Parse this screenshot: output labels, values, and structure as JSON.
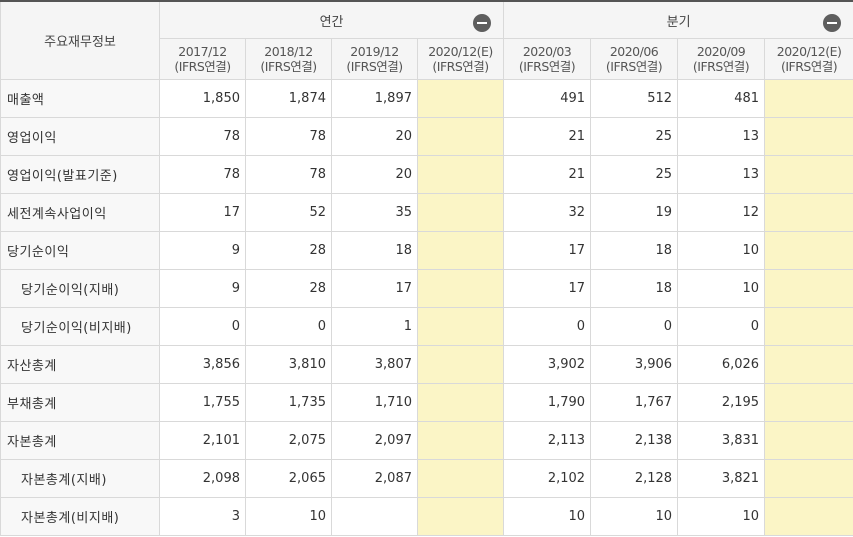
{
  "header": {
    "corner": "주요재무정보",
    "annual": {
      "label": "연간",
      "periods": [
        {
          "year": "2017/12",
          "basis": "(IFRS연결)"
        },
        {
          "year": "2018/12",
          "basis": "(IFRS연결)"
        },
        {
          "year": "2019/12",
          "basis": "(IFRS연결)"
        },
        {
          "year": "2020/12(E)",
          "basis": "(IFRS연결)"
        }
      ]
    },
    "quarterly": {
      "label": "분기",
      "periods": [
        {
          "year": "2020/03",
          "basis": "(IFRS연결)"
        },
        {
          "year": "2020/06",
          "basis": "(IFRS연결)"
        },
        {
          "year": "2020/09",
          "basis": "(IFRS연결)"
        },
        {
          "year": "2020/12(E)",
          "basis": "(IFRS연결)"
        }
      ]
    }
  },
  "colors": {
    "estimate_bg": "#fbf5c6",
    "header_bg": "#f5f5f5",
    "toggle": "#5e5e5e"
  },
  "rows": [
    {
      "label": "매출액",
      "indent": false,
      "annual": [
        "1,850",
        "1,874",
        "1,897",
        ""
      ],
      "quarterly": [
        "491",
        "512",
        "481",
        ""
      ]
    },
    {
      "label": "영업이익",
      "indent": false,
      "annual": [
        "78",
        "78",
        "20",
        ""
      ],
      "quarterly": [
        "21",
        "25",
        "13",
        ""
      ]
    },
    {
      "label": "영업이익(발표기준)",
      "indent": false,
      "annual": [
        "78",
        "78",
        "20",
        ""
      ],
      "quarterly": [
        "21",
        "25",
        "13",
        ""
      ]
    },
    {
      "label": "세전계속사업이익",
      "indent": false,
      "annual": [
        "17",
        "52",
        "35",
        ""
      ],
      "quarterly": [
        "32",
        "19",
        "12",
        ""
      ]
    },
    {
      "label": "당기순이익",
      "indent": false,
      "annual": [
        "9",
        "28",
        "18",
        ""
      ],
      "quarterly": [
        "17",
        "18",
        "10",
        ""
      ]
    },
    {
      "label": "당기순이익(지배)",
      "indent": true,
      "annual": [
        "9",
        "28",
        "17",
        ""
      ],
      "quarterly": [
        "17",
        "18",
        "10",
        ""
      ]
    },
    {
      "label": "당기순이익(비지배)",
      "indent": true,
      "annual": [
        "0",
        "0",
        "1",
        ""
      ],
      "quarterly": [
        "0",
        "0",
        "0",
        ""
      ]
    },
    {
      "label": "자산총계",
      "indent": false,
      "annual": [
        "3,856",
        "3,810",
        "3,807",
        ""
      ],
      "quarterly": [
        "3,902",
        "3,906",
        "6,026",
        ""
      ]
    },
    {
      "label": "부채총계",
      "indent": false,
      "annual": [
        "1,755",
        "1,735",
        "1,710",
        ""
      ],
      "quarterly": [
        "1,790",
        "1,767",
        "2,195",
        ""
      ]
    },
    {
      "label": "자본총계",
      "indent": false,
      "annual": [
        "2,101",
        "2,075",
        "2,097",
        ""
      ],
      "quarterly": [
        "2,113",
        "2,138",
        "3,831",
        ""
      ]
    },
    {
      "label": "자본총계(지배)",
      "indent": true,
      "annual": [
        "2,098",
        "2,065",
        "2,087",
        ""
      ],
      "quarterly": [
        "2,102",
        "2,128",
        "3,821",
        ""
      ]
    },
    {
      "label": "자본총계(비지배)",
      "indent": true,
      "annual": [
        "3",
        "10",
        "",
        ""
      ],
      "quarterly": [
        "10",
        "10",
        "10",
        ""
      ]
    }
  ]
}
